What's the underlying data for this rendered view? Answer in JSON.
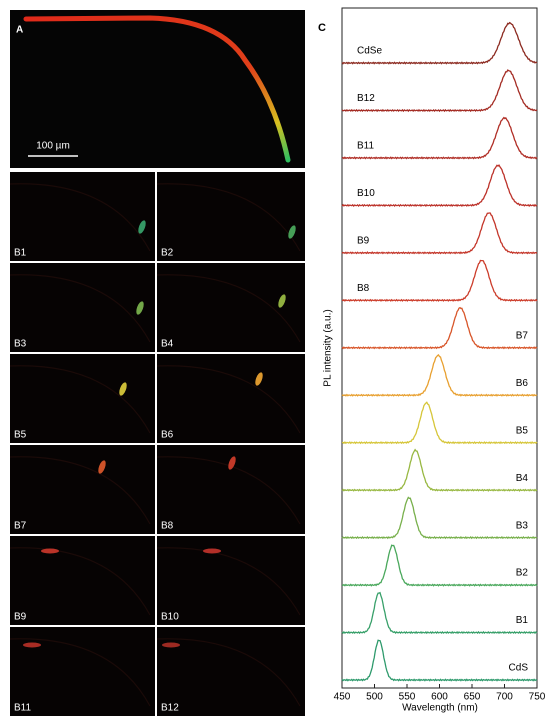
{
  "panels": {
    "A": {
      "label": "A",
      "scale_bar": "100 µm"
    },
    "B": [
      {
        "label": "B1"
      },
      {
        "label": "B2"
      },
      {
        "label": "B3"
      },
      {
        "label": "B4"
      },
      {
        "label": "B5"
      },
      {
        "label": "B6"
      },
      {
        "label": "B7"
      },
      {
        "label": "B8"
      },
      {
        "label": "B9"
      },
      {
        "label": "B10"
      },
      {
        "label": "B11"
      },
      {
        "label": "B12"
      }
    ]
  },
  "chart_data": {
    "type": "spectra",
    "panel_label": "C",
    "x_label": "Wavelength (nm)",
    "y_label": "PL intensity (a.u.)",
    "xlim": [
      450,
      750
    ],
    "xticks": [
      450,
      500,
      550,
      600,
      650,
      700,
      750
    ],
    "series": [
      {
        "name": "CdS",
        "color": "#2e9a6c",
        "peak": 507
      },
      {
        "name": "B1",
        "color": "#38a06a",
        "peak": 507
      },
      {
        "name": "B2",
        "color": "#4aa85c",
        "peak": 528
      },
      {
        "name": "B3",
        "color": "#78b04c",
        "peak": 553
      },
      {
        "name": "B4",
        "color": "#98b842",
        "peak": 563
      },
      {
        "name": "B5",
        "color": "#d6c63a",
        "peak": 580
      },
      {
        "name": "B6",
        "color": "#e8a030",
        "peak": 598
      },
      {
        "name": "B7",
        "color": "#d8562a",
        "peak": 632
      },
      {
        "name": "B8",
        "color": "#cc3c2a",
        "peak": 665
      },
      {
        "name": "B9",
        "color": "#c4362a",
        "peak": 676
      },
      {
        "name": "B10",
        "color": "#bc322a",
        "peak": 690
      },
      {
        "name": "B11",
        "color": "#b02e26",
        "peak": 700
      },
      {
        "name": "B12",
        "color": "#a42c24",
        "peak": 706
      },
      {
        "name": "CdSe",
        "color": "#8c2a20",
        "peak": 708
      }
    ]
  }
}
